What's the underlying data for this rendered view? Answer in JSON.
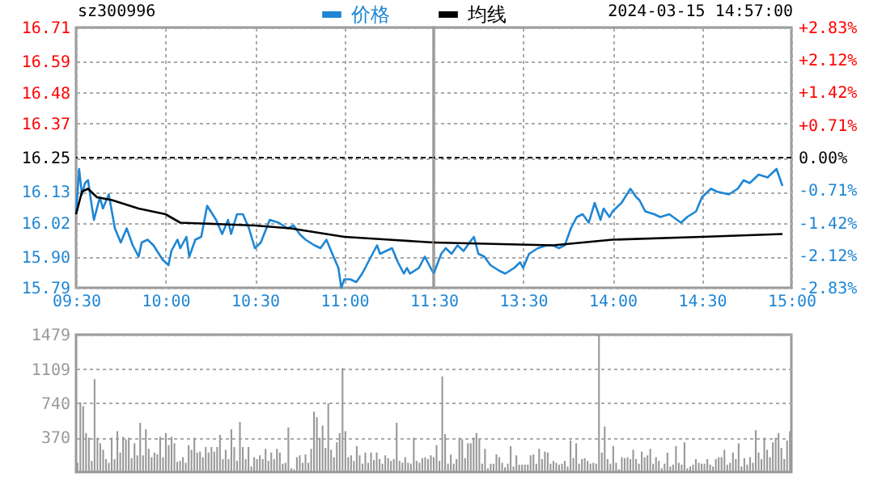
{
  "chart_data": [
    {
      "type": "line",
      "title": "sz300996",
      "legend": "top",
      "grid": true,
      "xlim": [
        9.5,
        11.5
      ],
      "xticks": [
        {
          "value": 9.5,
          "label": "09:30"
        },
        {
          "value": 10,
          "label": "10:00"
        },
        {
          "value": 10.5,
          "label": "10:30"
        },
        {
          "value": 11,
          "label": "11:00"
        },
        {
          "value": 11.5,
          "label": "11:30"
        }
      ],
      "ylim": [
        15.79,
        16.71
      ],
      "yticks": [
        15.79,
        {
          "value": 15.9,
          "label": "15.90"
        },
        16.02,
        16.13,
        16.25,
        16.37,
        16.48,
        16.59,
        16.71
      ],
      "ref_lines": [
        {
          "axis": "y",
          "value": 16.25,
          "color": "#000000",
          "line_style": "dashed"
        }
      ],
      "series": [
        {
          "name": "价格",
          "color": "#1e86d4",
          "x": [
            9.5,
            9.517,
            9.533,
            9.55,
            9.567,
            9.583,
            9.6,
            9.633,
            9.65,
            9.683,
            9.717,
            9.75,
            9.783,
            9.817,
            9.85,
            9.867,
            9.9,
            9.933,
            9.983,
            10.017,
            10.033,
            10.067,
            10.083,
            10.117,
            10.133,
            10.167,
            10.2,
            10.233,
            10.283,
            10.317,
            10.35,
            10.367,
            10.4,
            10.433,
            10.467,
            10.5,
            10.533,
            10.583,
            10.633,
            10.683,
            10.717,
            10.75,
            10.783,
            10.833,
            10.867,
            10.9,
            10.933,
            10.967,
            10.983,
            11,
            11.033,
            11.067,
            11.1,
            11.133,
            11.183,
            11.2,
            11.267,
            11.3,
            11.333,
            11.35,
            11.367,
            11.417,
            11.45,
            11.483,
            11.5
          ],
          "values": [
            16.05,
            16.21,
            16.12,
            16.16,
            16.17,
            16.1,
            16.03,
            16.11,
            16.07,
            16.12,
            16.0,
            15.95,
            16.0,
            15.94,
            15.9,
            15.95,
            15.96,
            15.94,
            15.89,
            15.87,
            15.92,
            15.96,
            15.93,
            15.97,
            15.9,
            15.96,
            15.97,
            16.08,
            16.03,
            15.98,
            16.03,
            15.98,
            16.05,
            16.05,
            16.0,
            15.93,
            15.95,
            16.03,
            16.02,
            16.0,
            16.01,
            15.98,
            15.96,
            15.94,
            15.93,
            15.96,
            15.91,
            15.86,
            15.79,
            15.82,
            15.82,
            15.81,
            15.84,
            15.88,
            15.94,
            15.91,
            15.93,
            15.88,
            15.84,
            15.86,
            15.84,
            15.86,
            15.9,
            15.86,
            15.84
          ]
        },
        {
          "name": "均线",
          "color": "#000000",
          "x": [
            9.5,
            9.533,
            9.567,
            9.617,
            9.7,
            9.85,
            10,
            10.083,
            10.3,
            10.5,
            10.7,
            11,
            11.25,
            11.5
          ],
          "values": [
            16.05,
            16.13,
            16.14,
            16.11,
            16.1,
            16.07,
            16.05,
            16.02,
            16.015,
            16.01,
            16.0,
            15.97,
            15.96,
            15.95
          ]
        }
      ]
    },
    {
      "type": "line",
      "title": "2024-03-15 14:57:00",
      "grid": true,
      "tick_labels": "x",
      "xlim": [
        13,
        15
      ],
      "xticks": [
        {
          "value": 13,
          "label": null
        },
        {
          "value": 13.5,
          "label": "13:30"
        },
        {
          "value": 14,
          "label": "14:00"
        },
        {
          "value": 14.5,
          "label": "14:30"
        },
        {
          "value": 15,
          "label": "15:00"
        }
      ],
      "ylim": [
        15.79,
        16.71
      ],
      "yticks": [
        15.79,
        15.9,
        16.02,
        16.13,
        16.25,
        16.37,
        16.48,
        16.59,
        16.71
      ],
      "y2lim": [
        -2.83,
        2.83
      ],
      "y2ticks": [
        {
          "value": -2.83,
          "label": "-2.83%"
        },
        {
          "value": -2.12,
          "label": "-2.12%"
        },
        {
          "value": -1.42,
          "label": "-1.42%"
        },
        {
          "value": -0.71,
          "label": "-0.71%"
        },
        {
          "value": 0,
          "label": "0.00%"
        },
        {
          "value": 0.71,
          "label": "+0.71%"
        },
        {
          "value": 1.42,
          "label": "+1.42%"
        },
        {
          "value": 2.12,
          "label": "+2.12%"
        },
        {
          "value": 2.83,
          "label": "+2.83%"
        }
      ],
      "ref_lines": [
        {
          "axis": "y2",
          "value": 0,
          "color": "#000000",
          "line_style": "dashed"
        }
      ],
      "series": [
        {
          "color": "#1e86d4",
          "x": [
            13,
            13.042,
            13.067,
            13.1,
            13.133,
            13.167,
            13.2,
            13.225,
            13.25,
            13.283,
            13.317,
            13.367,
            13.4,
            13.45,
            13.483,
            13.5,
            13.533,
            13.583,
            13.633,
            13.667,
            13.7,
            13.733,
            13.767,
            13.8,
            13.833,
            13.867,
            13.9,
            13.933,
            13.95,
            13.983,
            14,
            14.05,
            14.1,
            14.133,
            14.15,
            14.183,
            14.233,
            14.267,
            14.317,
            14.383,
            14.417,
            14.467,
            14.5,
            14.55,
            14.583,
            14.65,
            14.7,
            14.733,
            14.767,
            14.817,
            14.867,
            14.917,
            14.95
          ],
          "values": [
            15.84,
            15.91,
            15.93,
            15.91,
            15.94,
            15.92,
            15.95,
            15.97,
            15.91,
            15.9,
            15.87,
            15.85,
            15.84,
            15.86,
            15.88,
            15.86,
            15.91,
            15.93,
            15.94,
            15.94,
            15.93,
            15.94,
            16.0,
            16.04,
            16.05,
            16.02,
            16.09,
            16.03,
            16.07,
            16.04,
            16.06,
            16.09,
            16.14,
            16.11,
            16.1,
            16.06,
            16.05,
            16.04,
            16.05,
            16.02,
            16.04,
            16.06,
            16.11,
            16.14,
            16.13,
            16.12,
            16.14,
            16.17,
            16.16,
            16.19,
            16.18,
            16.21,
            16.15
          ]
        },
        {
          "color": "#000000",
          "x": [
            13,
            13.667,
            14,
            14.5,
            14.95
          ],
          "values": [
            15.95,
            15.94,
            15.96,
            15.97,
            15.98
          ]
        }
      ]
    },
    {
      "type": "bar",
      "grid": "y",
      "tick_labels": "y",
      "color": "#999999",
      "ylim": [
        0,
        1479
      ],
      "yticks": [
        370,
        740,
        1109,
        1479
      ],
      "categories": [
        null,
        null,
        null,
        null,
        null,
        null,
        null,
        null,
        null,
        null,
        null,
        null,
        null,
        null,
        null,
        null,
        null,
        null,
        null,
        null,
        null,
        null,
        null,
        null,
        null,
        null,
        null,
        null,
        null,
        null,
        null,
        null,
        null,
        null,
        null,
        null,
        null,
        null,
        null,
        null,
        null,
        null,
        null,
        null,
        null,
        null,
        null,
        null,
        null,
        null,
        null,
        null,
        null,
        null,
        null,
        null,
        null,
        null,
        null,
        null,
        null,
        null,
        null,
        null,
        null,
        null,
        null,
        null,
        null,
        null,
        null,
        null,
        null,
        null,
        null,
        null,
        null,
        null,
        null,
        null,
        null,
        null,
        null,
        null,
        null,
        null,
        null,
        null,
        null,
        null,
        null,
        null,
        null,
        null,
        null,
        null,
        null,
        null,
        null,
        null,
        null,
        null,
        null,
        null,
        null,
        null,
        null,
        null,
        null,
        null,
        null,
        null,
        null,
        null,
        null,
        null,
        null,
        null,
        null,
        null,
        null,
        null,
        null,
        null,
        null,
        null,
        null,
        null,
        null,
        null,
        null,
        null,
        null,
        null,
        null,
        null,
        null,
        null,
        null,
        null,
        null,
        null,
        null,
        null,
        null,
        null,
        null,
        null,
        null,
        null,
        null,
        null,
        null,
        null,
        null,
        null,
        null,
        null,
        null,
        null,
        null,
        null,
        null,
        null,
        null,
        null,
        null,
        null,
        null,
        null,
        null,
        null,
        null,
        null,
        null,
        null,
        null,
        null,
        null,
        null,
        null,
        null,
        null,
        null,
        null,
        null,
        null,
        null,
        null,
        null,
        null,
        null,
        null,
        null,
        null,
        null,
        null,
        null,
        null,
        null,
        null,
        null,
        null,
        null,
        null,
        null,
        null,
        null,
        null,
        null,
        null,
        null,
        null,
        null,
        null,
        null,
        null,
        null,
        null,
        null,
        null,
        null,
        null,
        null,
        null,
        null,
        null,
        null,
        null,
        null,
        null,
        null,
        null,
        null,
        null,
        null,
        null,
        null,
        null,
        null,
        null,
        null,
        null,
        null,
        null,
        null,
        null,
        null,
        null,
        null,
        null
      ],
      "values": [
        100,
        750,
        710,
        420,
        370,
        120,
        1000,
        370,
        310,
        240,
        140,
        100,
        370,
        140,
        440,
        210,
        380,
        350,
        370,
        150,
        310,
        180,
        530,
        180,
        460,
        250,
        160,
        210,
        190,
        380,
        160,
        420,
        290,
        380,
        310,
        110,
        120,
        160,
        100,
        290,
        240,
        370,
        210,
        220,
        160,
        270,
        210,
        270,
        220,
        270,
        400,
        140,
        240,
        140,
        460,
        270,
        120,
        540,
        270,
        140,
        270,
        60,
        160,
        140,
        180,
        140,
        250,
        120,
        210,
        140,
        250,
        210,
        90,
        100,
        480,
        40,
        30,
        160,
        180,
        100,
        190,
        100,
        250,
        650,
        590,
        370,
        500,
        260,
        740,
        240,
        160,
        320,
        420,
        1120,
        440,
        160,
        180,
        120,
        280,
        180,
        90,
        210,
        100,
        210,
        130,
        210,
        140,
        90,
        180,
        150,
        120,
        140,
        530,
        120,
        100,
        160,
        100,
        90,
        370,
        120,
        100,
        150,
        160,
        140,
        180,
        160,
        290,
        120,
        1030,
        410,
        90,
        190,
        90,
        140,
        370,
        350,
        150,
        310,
        310,
        370,
        420,
        350,
        90,
        250,
        40,
        90,
        90,
        190,
        160,
        100,
        50,
        90,
        280,
        60,
        180,
        80,
        80,
        80,
        80,
        180,
        190,
        90,
        250,
        140,
        220,
        210,
        90,
        120,
        100,
        80,
        90,
        120,
        60,
        340,
        150,
        310,
        90,
        140,
        150,
        120,
        90,
        100,
        90,
        1479,
        210,
        490,
        140,
        90,
        280,
        100,
        30,
        160,
        150,
        160,
        140,
        240,
        140,
        90,
        220,
        160,
        180,
        250,
        90,
        160,
        120,
        40,
        90,
        210,
        60,
        80,
        280,
        100,
        80,
        320,
        40,
        60,
        80,
        140,
        100,
        90,
        90,
        140,
        80,
        60,
        140,
        160,
        160,
        240,
        80,
        100,
        210,
        140,
        310,
        60,
        150,
        80,
        160,
        100,
        450,
        210,
        140,
        370,
        240,
        160,
        320,
        370,
        420,
        260,
        140,
        340,
        440
      ]
    }
  ]
}
